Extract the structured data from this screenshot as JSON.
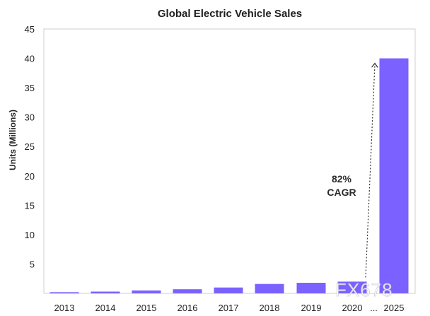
{
  "chart_data": {
    "type": "bar",
    "title": "Global Electric Vehicle Sales",
    "ylabel": "Units (Millions)",
    "xlabel": "",
    "categories": [
      "2013",
      "2014",
      "2015",
      "2016",
      "2017",
      "2018",
      "2019",
      "2020",
      "2025"
    ],
    "values": [
      0.2,
      0.3,
      0.5,
      0.7,
      1.0,
      1.6,
      1.8,
      2.0,
      40
    ],
    "ylim": [
      0,
      45
    ],
    "yticks": [
      "5",
      "10",
      "15",
      "20",
      "25",
      "30",
      "35",
      "40",
      "45"
    ],
    "ytick_values": [
      5,
      10,
      15,
      20,
      25,
      30,
      35,
      40,
      45
    ],
    "gap_marker": "...",
    "annotation": {
      "line1": "82%",
      "line2": "CAGR"
    },
    "bar_color": "#7B61FF",
    "grid": false
  },
  "watermark": "FX678"
}
